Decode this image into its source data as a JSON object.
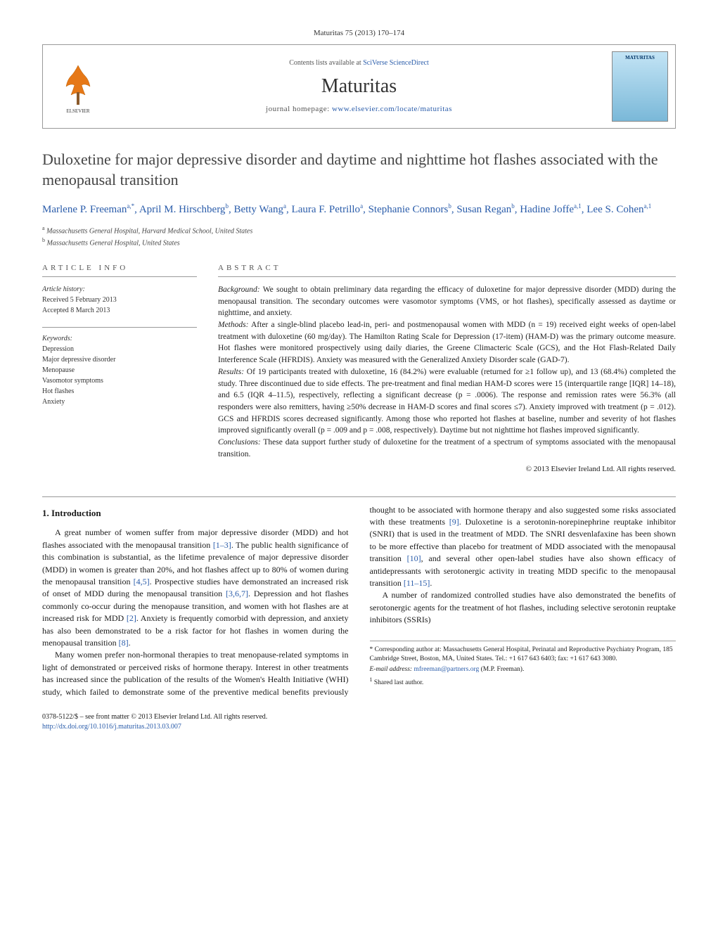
{
  "header": {
    "citation": "Maturitas 75 (2013) 170–174",
    "contents_prefix": "Contents lists available at ",
    "contents_link": "SciVerse ScienceDirect",
    "journal": "Maturitas",
    "homepage_prefix": "journal homepage: ",
    "homepage_url": "www.elsevier.com/locate/maturitas",
    "cover_label": "MATURITAS"
  },
  "title": "Duloxetine for major depressive disorder and daytime and nighttime hot flashes associated with the menopausal transition",
  "authors_html": "Marlene P. Freeman<sup>a,*</sup>, April M. Hirschberg<sup>b</sup>, Betty Wang<sup>a</sup>, Laura F. Petrillo<sup>a</sup>, Stephanie Connors<sup>b</sup>, Susan Regan<sup>b</sup>, Hadine Joffe<sup>a,1</sup>, Lee S. Cohen<sup>a,1</sup>",
  "affiliations": [
    {
      "marker": "a",
      "text": "Massachusetts General Hospital, Harvard Medical School, United States"
    },
    {
      "marker": "b",
      "text": "Massachusetts General Hospital, United States"
    }
  ],
  "article_info": {
    "label": "article info",
    "history_head": "Article history:",
    "received": "Received 5 February 2013",
    "accepted": "Accepted 8 March 2013",
    "keywords_head": "Keywords:",
    "keywords": [
      "Depression",
      "Major depressive disorder",
      "Menopause",
      "Vasomotor symptoms",
      "Hot flashes",
      "Anxiety"
    ]
  },
  "abstract": {
    "label": "abstract",
    "background_head": "Background:",
    "background": " We sought to obtain preliminary data regarding the efficacy of duloxetine for major depressive disorder (MDD) during the menopausal transition. The secondary outcomes were vasomotor symptoms (VMS, or hot flashes), specifically assessed as daytime or nighttime, and anxiety.",
    "methods_head": "Methods:",
    "methods": " After a single-blind placebo lead-in, peri- and postmenopausal women with MDD (n = 19) received eight weeks of open-label treatment with duloxetine (60 mg/day). The Hamilton Rating Scale for Depression (17-item) (HAM-D) was the primary outcome measure. Hot flashes were monitored prospectively using daily diaries, the Greene Climacteric Scale (GCS), and the Hot Flash-Related Daily Interference Scale (HFRDIS). Anxiety was measured with the Generalized Anxiety Disorder scale (GAD-7).",
    "results_head": "Results:",
    "results": " Of 19 participants treated with duloxetine, 16 (84.2%) were evaluable (returned for ≥1 follow up), and 13 (68.4%) completed the study. Three discontinued due to side effects. The pre-treatment and final median HAM-D scores were 15 (interquartile range [IQR] 14–18), and 6.5 (IQR 4–11.5), respectively, reflecting a significant decrease (p = .0006). The response and remission rates were 56.3% (all responders were also remitters, having ≥50% decrease in HAM-D scores and final scores ≤7). Anxiety improved with treatment (p = .012). GCS and HFRDIS scores decreased significantly. Among those who reported hot flashes at baseline, number and severity of hot flashes improved significantly overall (p = .009 and p = .008, respectively). Daytime but not nighttime hot flashes improved significantly.",
    "conclusions_head": "Conclusions:",
    "conclusions": " These data support further study of duloxetine for the treatment of a spectrum of symptoms associated with the menopausal transition.",
    "copyright": "© 2013 Elsevier Ireland Ltd. All rights reserved."
  },
  "body": {
    "section_num": "1.",
    "section_title": "Introduction",
    "p1_a": "A great number of women suffer from major depressive disorder (MDD) and hot flashes associated with the menopausal transition ",
    "p1_ref1": "[1–3]",
    "p1_b": ". The public health significance of this combination is substantial, as the lifetime prevalence of major depressive disorder (MDD) in women is greater than 20%, and hot flashes affect up to 80% of women during the menopausal transition ",
    "p1_ref2": "[4,5]",
    "p1_c": ". Prospective studies have demonstrated an increased risk of onset of MDD during the menopausal transition ",
    "p1_ref3": "[3,6,7]",
    "p1_d": ". Depression and hot flashes commonly co-occur during the menopause transition, and women with hot flashes are at increased risk for MDD ",
    "p1_ref4": "[2]",
    "p1_e": ". Anxiety is frequently comorbid with depression, and anxiety has also been demonstrated to be a risk factor for hot flashes in women during the menopausal transition ",
    "p1_ref5": "[8]",
    "p1_f": ".",
    "p2_a": "Many women prefer non-hormonal therapies to treat menopause-related symptoms in light of demonstrated or perceived risks of hormone therapy. Interest in other treatments has increased since the publication of the results of the Women's Health Initiative (WHI) study, which failed to demonstrate some of the preventive medical benefits previously thought to be associated with hormone therapy and also suggested some risks associated with these treatments ",
    "p2_ref1": "[9]",
    "p2_b": ". Duloxetine is a serotonin-norepinephrine reuptake inhibitor (SNRI) that is used in the treatment of MDD. The SNRI desvenlafaxine has been shown to be more effective than placebo for treatment of MDD associated with the menopausal transition ",
    "p2_ref2": "[10]",
    "p2_c": ", and several other open-label studies have also shown efficacy of antidepressants with serotonergic activity in treating MDD specific to the menopausal transition ",
    "p2_ref3": "[11–15]",
    "p2_d": ".",
    "p3": "A number of randomized controlled studies have also demonstrated the benefits of serotonergic agents for the treatment of hot flashes, including selective serotonin reuptake inhibitors (SSRIs)"
  },
  "footnotes": {
    "corr_marker": "*",
    "corr": "Corresponding author at: Massachusetts General Hospital, Perinatal and Reproductive Psychiatry Program, 185 Cambridge Street, Boston, MA, United States. Tel.: +1 617 643 6403; fax: +1 617 643 3080.",
    "email_label": "E-mail address: ",
    "email": "mfreeman@partners.org",
    "email_suffix": " (M.P. Freeman).",
    "shared_marker": "1",
    "shared": "Shared last author."
  },
  "footer": {
    "front_matter": "0378-5122/$ – see front matter © 2013 Elsevier Ireland Ltd. All rights reserved.",
    "doi_url": "http://dx.doi.org/10.1016/j.maturitas.2013.03.007"
  },
  "colors": {
    "link": "#2a5caa",
    "rule": "#999999",
    "text": "#1a1a1a"
  }
}
